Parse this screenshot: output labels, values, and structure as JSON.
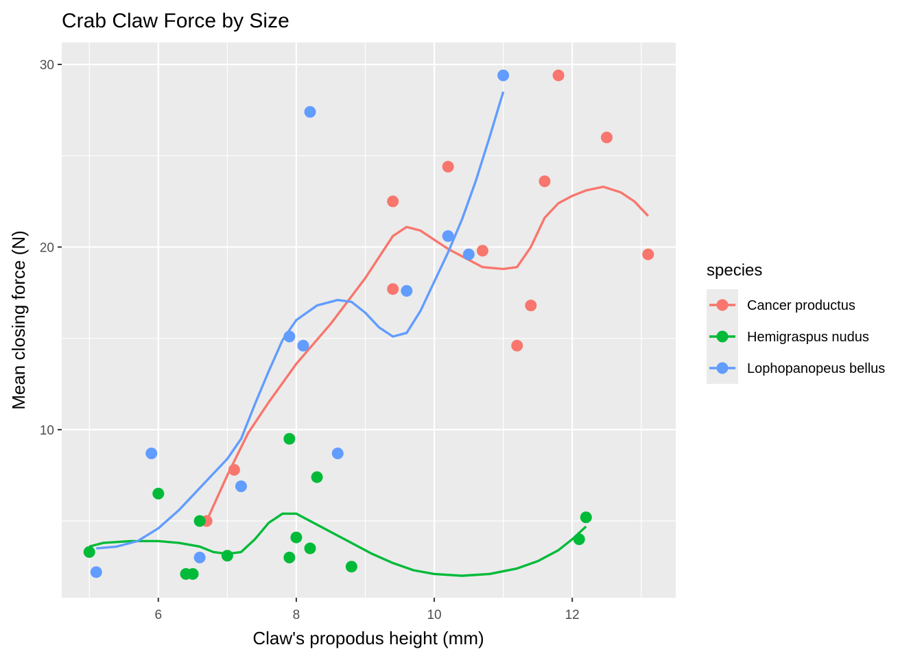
{
  "chart_data": {
    "type": "scatter",
    "title": "Crab Claw Force by Size",
    "xlabel": "Claw's propodus height (mm)",
    "ylabel": "Mean closing force (N)",
    "xlim": [
      4.6,
      13.5
    ],
    "ylim": [
      0.8,
      31.2
    ],
    "x_ticks": [
      6,
      8,
      10,
      12
    ],
    "y_ticks": [
      10,
      20,
      30
    ],
    "grid": true,
    "legend": {
      "title": "species",
      "position": "right"
    },
    "series": [
      {
        "name": "Cancer productus",
        "color": "#F8766D",
        "points": [
          [
            6.7,
            5.0
          ],
          [
            7.1,
            7.8
          ],
          [
            9.4,
            22.5
          ],
          [
            9.4,
            17.7
          ],
          [
            10.2,
            24.4
          ],
          [
            10.7,
            19.8
          ],
          [
            11.2,
            14.6
          ],
          [
            11.4,
            16.8
          ],
          [
            11.6,
            23.6
          ],
          [
            11.8,
            29.4
          ],
          [
            12.5,
            26.0
          ],
          [
            13.1,
            19.6
          ]
        ],
        "smooth": [
          [
            6.7,
            5.0
          ],
          [
            7.0,
            7.5
          ],
          [
            7.3,
            9.8
          ],
          [
            7.6,
            11.5
          ],
          [
            8.0,
            13.6
          ],
          [
            8.5,
            15.8
          ],
          [
            9.0,
            18.3
          ],
          [
            9.4,
            20.6
          ],
          [
            9.6,
            21.1
          ],
          [
            9.8,
            20.9
          ],
          [
            10.0,
            20.4
          ],
          [
            10.2,
            19.9
          ],
          [
            10.5,
            19.3
          ],
          [
            10.7,
            18.9
          ],
          [
            11.0,
            18.8
          ],
          [
            11.2,
            18.9
          ],
          [
            11.4,
            20.0
          ],
          [
            11.6,
            21.6
          ],
          [
            11.8,
            22.4
          ],
          [
            12.0,
            22.8
          ],
          [
            12.2,
            23.1
          ],
          [
            12.45,
            23.3
          ],
          [
            12.7,
            23.0
          ],
          [
            12.9,
            22.5
          ],
          [
            13.1,
            21.7
          ]
        ]
      },
      {
        "name": "Hemigraspus nudus",
        "color": "#00BA38",
        "points": [
          [
            5.0,
            3.3
          ],
          [
            6.0,
            6.5
          ],
          [
            6.4,
            2.1
          ],
          [
            6.5,
            2.1
          ],
          [
            6.6,
            5.0
          ],
          [
            7.0,
            3.1
          ],
          [
            7.9,
            9.5
          ],
          [
            7.9,
            3.0
          ],
          [
            8.0,
            4.1
          ],
          [
            8.2,
            3.5
          ],
          [
            8.3,
            7.4
          ],
          [
            8.8,
            2.5
          ],
          [
            12.1,
            4.0
          ],
          [
            12.2,
            5.2
          ]
        ],
        "smooth": [
          [
            5.0,
            3.6
          ],
          [
            5.2,
            3.8
          ],
          [
            5.6,
            3.9
          ],
          [
            6.0,
            3.9
          ],
          [
            6.3,
            3.8
          ],
          [
            6.6,
            3.6
          ],
          [
            6.8,
            3.3
          ],
          [
            7.0,
            3.2
          ],
          [
            7.2,
            3.3
          ],
          [
            7.4,
            4.0
          ],
          [
            7.6,
            4.9
          ],
          [
            7.8,
            5.4
          ],
          [
            8.0,
            5.4
          ],
          [
            8.2,
            5.0
          ],
          [
            8.5,
            4.4
          ],
          [
            8.8,
            3.8
          ],
          [
            9.1,
            3.2
          ],
          [
            9.4,
            2.7
          ],
          [
            9.7,
            2.3
          ],
          [
            10.0,
            2.1
          ],
          [
            10.4,
            2.0
          ],
          [
            10.8,
            2.1
          ],
          [
            11.2,
            2.4
          ],
          [
            11.5,
            2.8
          ],
          [
            11.8,
            3.4
          ],
          [
            12.0,
            4.0
          ],
          [
            12.2,
            4.7
          ]
        ]
      },
      {
        "name": "Lophopanopeus bellus",
        "color": "#619CFF",
        "points": [
          [
            5.1,
            2.2
          ],
          [
            5.9,
            8.7
          ],
          [
            6.6,
            3.0
          ],
          [
            7.2,
            6.9
          ],
          [
            7.9,
            15.1
          ],
          [
            8.1,
            14.6
          ],
          [
            8.2,
            27.4
          ],
          [
            8.6,
            8.7
          ],
          [
            9.6,
            17.6
          ],
          [
            10.2,
            20.6
          ],
          [
            10.5,
            19.6
          ],
          [
            11.0,
            29.4
          ]
        ],
        "smooth": [
          [
            5.1,
            3.5
          ],
          [
            5.4,
            3.6
          ],
          [
            5.7,
            3.9
          ],
          [
            6.0,
            4.6
          ],
          [
            6.3,
            5.6
          ],
          [
            6.6,
            6.8
          ],
          [
            7.0,
            8.4
          ],
          [
            7.2,
            9.5
          ],
          [
            7.4,
            11.4
          ],
          [
            7.6,
            13.2
          ],
          [
            7.8,
            14.9
          ],
          [
            8.0,
            16.0
          ],
          [
            8.3,
            16.8
          ],
          [
            8.6,
            17.1
          ],
          [
            8.8,
            17.0
          ],
          [
            9.0,
            16.4
          ],
          [
            9.2,
            15.6
          ],
          [
            9.4,
            15.1
          ],
          [
            9.6,
            15.3
          ],
          [
            9.8,
            16.5
          ],
          [
            10.0,
            18.1
          ],
          [
            10.2,
            19.7
          ],
          [
            10.4,
            21.5
          ],
          [
            10.6,
            23.6
          ],
          [
            10.8,
            26.0
          ],
          [
            11.0,
            28.5
          ]
        ]
      }
    ]
  }
}
